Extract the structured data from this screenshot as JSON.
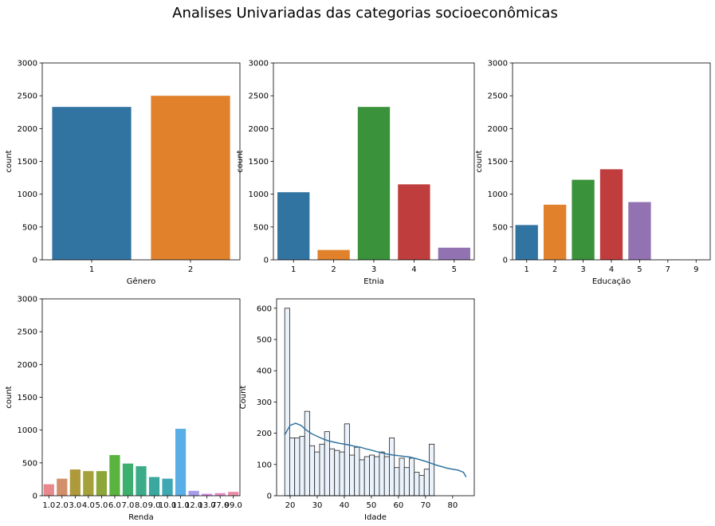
{
  "figure": {
    "suptitle": "Analises Univariadas das categorias socioeconômicas"
  },
  "chart_data": [
    {
      "type": "bar",
      "xlabel": "Gênero",
      "ylabel": "count",
      "ylim": [
        0,
        3000
      ],
      "yticks": [
        0,
        500,
        1000,
        1500,
        2000,
        2500,
        3000
      ],
      "categories": [
        "1",
        "2"
      ],
      "values": [
        2330,
        2500
      ],
      "colors": [
        "#3274a1",
        "#e1812c"
      ],
      "grid": false
    },
    {
      "type": "bar",
      "xlabel": "Etnia",
      "ylabel": "count",
      "ylim": [
        0,
        3000
      ],
      "yticks": [
        0,
        500,
        1000,
        1500,
        2000,
        2500,
        3000
      ],
      "categories": [
        "1",
        "2",
        "3",
        "4",
        "5"
      ],
      "values": [
        1030,
        150,
        2330,
        1150,
        185
      ],
      "colors": [
        "#3274a1",
        "#e1812c",
        "#3a923a",
        "#c03d3e",
        "#9372b2"
      ],
      "grid": false
    },
    {
      "type": "bar",
      "xlabel": "Educação",
      "ylabel": "count",
      "ylim": [
        0,
        3000
      ],
      "yticks": [
        0,
        500,
        1000,
        1500,
        2000,
        2500,
        3000
      ],
      "categories": [
        "1",
        "2",
        "3",
        "4",
        "5",
        "7",
        "9"
      ],
      "values": [
        530,
        840,
        1220,
        1380,
        880,
        3,
        3
      ],
      "colors": [
        "#3274a1",
        "#e1812c",
        "#3a923a",
        "#c03d3e",
        "#9372b2",
        "#845b53",
        "#d684bd"
      ],
      "grid": false
    },
    {
      "type": "bar",
      "xlabel": "Renda",
      "ylabel": "count",
      "ylim": [
        0,
        3000
      ],
      "yticks": [
        0,
        500,
        1000,
        1500,
        2000,
        2500,
        3000
      ],
      "categories": [
        "1.0",
        "2.0",
        "3.0",
        "4.0",
        "5.0",
        "6.0",
        "7.0",
        "8.0",
        "9.0",
        "10.0",
        "11.0",
        "12.0",
        "13.0",
        "77.0",
        "99.0"
      ],
      "values": [
        175,
        260,
        400,
        375,
        375,
        620,
        490,
        450,
        285,
        260,
        1020,
        75,
        30,
        40,
        60
      ],
      "colors": [
        "#e8888d",
        "#d1906b",
        "#ae9a3a",
        "#a5a13a",
        "#8ca63a",
        "#5ab33f",
        "#3cae6d",
        "#3cab8a",
        "#3ba8a0",
        "#3da7b3",
        "#5aaee6",
        "#a79bee",
        "#d88ae5",
        "#e48ccb",
        "#ec8ea9"
      ],
      "grid": false
    },
    {
      "type": "histogram",
      "xlabel": "Idade",
      "ylabel": "Count",
      "xlim": [
        15,
        88
      ],
      "ylim": [
        0,
        630
      ],
      "xticks": [
        20,
        30,
        40,
        50,
        60,
        70,
        80
      ],
      "yticks": [
        0,
        100,
        200,
        300,
        400,
        500,
        600
      ],
      "bin_width": 1.84,
      "bins_start": [
        18.0,
        19.84,
        21.68,
        23.52,
        25.36,
        27.2,
        29.04,
        30.88,
        32.72,
        34.56,
        36.4,
        38.24,
        40.08,
        41.92,
        43.76,
        45.6,
        47.44,
        49.28,
        51.12,
        52.96,
        54.8,
        56.64,
        58.48,
        60.32,
        62.16,
        64.0,
        65.84,
        67.68,
        69.52,
        71.36,
        73.2,
        75.04,
        76.88,
        78.72,
        80.56,
        82.4
      ],
      "values": [
        600,
        185,
        185,
        190,
        270,
        160,
        140,
        165,
        205,
        150,
        145,
        140,
        230,
        130,
        155,
        115,
        125,
        130,
        125,
        140,
        125,
        185,
        90,
        120,
        90,
        120,
        75,
        65,
        85,
        165,
        0,
        0,
        0,
        0,
        0,
        0
      ],
      "bar_fill": "#eaf2fb",
      "bar_edge": "#222222",
      "kde": {
        "x": [
          18,
          20,
          22,
          24,
          26,
          28,
          30,
          32,
          34,
          36,
          38,
          40,
          42,
          44,
          46,
          48,
          50,
          52,
          54,
          56,
          58,
          60,
          62,
          64,
          66,
          68,
          70,
          72,
          74,
          76,
          78,
          80,
          82,
          84,
          85
        ],
        "y": [
          195,
          225,
          232,
          225,
          210,
          198,
          190,
          182,
          176,
          172,
          168,
          165,
          162,
          158,
          155,
          150,
          146,
          141,
          137,
          133,
          130,
          128,
          126,
          124,
          120,
          115,
          110,
          104,
          98,
          93,
          88,
          85,
          82,
          75,
          60
        ],
        "color": "#3274a1"
      },
      "grid": false
    }
  ]
}
